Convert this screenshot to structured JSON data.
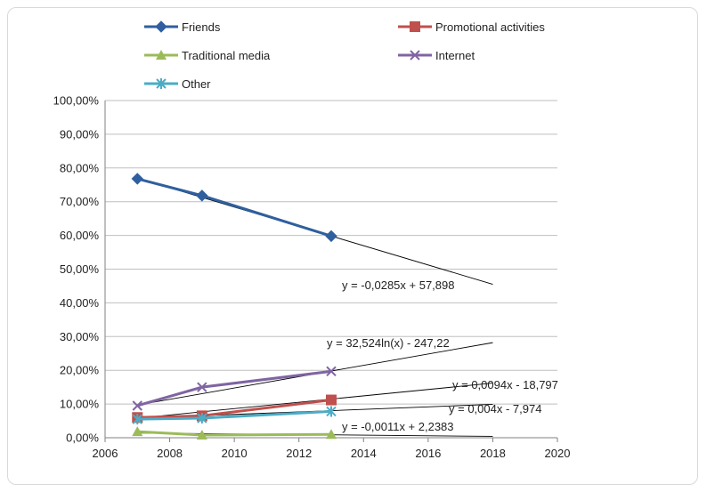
{
  "chart_data": {
    "type": "scatter",
    "title": "",
    "xlabel": "",
    "ylabel": "",
    "xlim": [
      2006,
      2020
    ],
    "ylim": [
      0,
      100
    ],
    "x_ticks": [
      "2006",
      "2008",
      "2010",
      "2012",
      "2014",
      "2016",
      "2018",
      "2020"
    ],
    "y_ticks": [
      "0,00%",
      "10,00%",
      "20,00%",
      "30,00%",
      "40,00%",
      "50,00%",
      "60,00%",
      "70,00%",
      "80,00%",
      "90,00%",
      "100,00%"
    ],
    "grid": "horizontal",
    "legend_position": "top",
    "series": [
      {
        "name": "Friends",
        "color": "#2f5f9e",
        "marker": "diamond",
        "x": [
          2007,
          2009,
          2013
        ],
        "y": [
          76.8,
          71.8,
          59.8
        ]
      },
      {
        "name": "Promotional activities",
        "color": "#c0504d",
        "marker": "square",
        "x": [
          2007,
          2009,
          2013
        ],
        "y": [
          6.0,
          6.5,
          11.2
        ]
      },
      {
        "name": "Traditional media",
        "color": "#9bbb59",
        "marker": "triangle",
        "x": [
          2007,
          2009,
          2013
        ],
        "y": [
          1.8,
          0.8,
          1.0
        ]
      },
      {
        "name": "Internet",
        "color": "#8064a2",
        "marker": "x",
        "x": [
          2007,
          2009,
          2013
        ],
        "y": [
          9.5,
          15.0,
          19.7
        ]
      },
      {
        "name": "Other",
        "color": "#4bacc6",
        "marker": "star",
        "x": [
          2007,
          2009,
          2013
        ],
        "y": [
          5.5,
          5.8,
          7.8
        ]
      }
    ],
    "trendlines": [
      {
        "equation": "y = -0,0285x + 57,898",
        "x": [
          2007,
          2018
        ],
        "y": [
          77.0,
          45.5
        ]
      },
      {
        "equation": "y = 32,524ln(x) - 247,22",
        "x": [
          2007,
          2018
        ],
        "y": [
          9.7,
          28.2
        ]
      },
      {
        "equation": "y = 0,0094x - 18,797",
        "x": [
          2007,
          2018
        ],
        "y": [
          5.8,
          16.2
        ]
      },
      {
        "equation": "y = 0,004x - 7,974",
        "x": [
          2007,
          2018
        ],
        "y": [
          5.8,
          9.9
        ]
      },
      {
        "equation": "y = -0,0011x + 2,2383",
        "x": [
          2007,
          2018
        ],
        "y": [
          1.4,
          0.4
        ]
      }
    ]
  }
}
